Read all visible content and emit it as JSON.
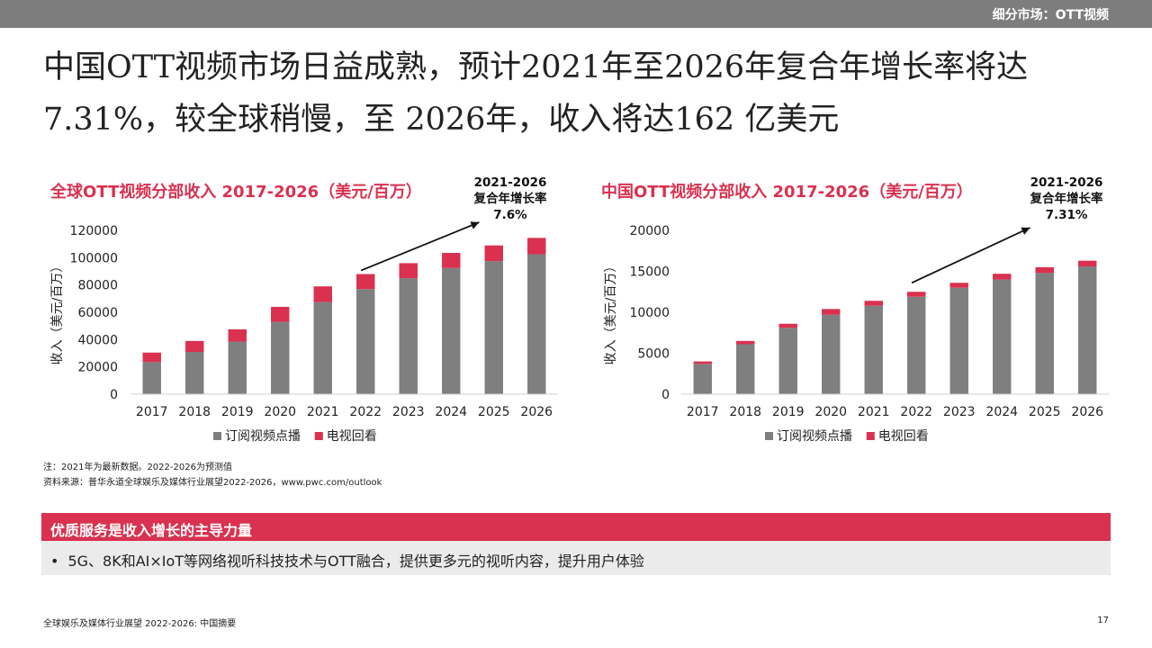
{
  "header": {
    "section_label": "细分市场：OTT视频"
  },
  "page": {
    "title": "中国OTT视频市场日益成熟，预计2021年至2026年复合年增长率将达7.31%，较全球稍慢，至 2026年，收入将达162 亿美元"
  },
  "chart_data": [
    {
      "type": "bar",
      "stacked": true,
      "title": "全球OTT视频分部收入 2017-2026（美元/百万）",
      "ylabel": "收入（美元/百万）",
      "xlabel": "",
      "ylim": [
        0,
        120000
      ],
      "yticks": [
        0,
        20000,
        40000,
        60000,
        80000,
        100000,
        120000
      ],
      "grid": false,
      "legend": "bottom",
      "categories": [
        "2017",
        "2018",
        "2019",
        "2020",
        "2021",
        "2022",
        "2023",
        "2024",
        "2025",
        "2026"
      ],
      "series": [
        {
          "name": "订阅视频点播",
          "color": "#7f7f7f",
          "values": [
            23500,
            31000,
            38500,
            53000,
            67500,
            77000,
            85000,
            92500,
            97500,
            102500
          ]
        },
        {
          "name": "电视回看",
          "color": "#d9314f",
          "values": [
            7000,
            8000,
            9000,
            11000,
            11500,
            11000,
            11000,
            11000,
            11500,
            12000
          ]
        }
      ],
      "annotation": {
        "lines": [
          "2021-2026",
          "复合年增长率",
          "7.6%"
        ],
        "from": "2022",
        "to": "2025"
      }
    },
    {
      "type": "bar",
      "stacked": true,
      "title": "中国OTT视频分部收入 2017-2026（美元/百万）",
      "ylabel": "收入（美元/百万）",
      "xlabel": "",
      "ylim": [
        0,
        20000
      ],
      "yticks": [
        0,
        5000,
        10000,
        15000,
        20000
      ],
      "grid": false,
      "legend": "bottom",
      "categories": [
        "2017",
        "2018",
        "2019",
        "2020",
        "2021",
        "2022",
        "2023",
        "2024",
        "2025",
        "2026"
      ],
      "series": [
        {
          "name": "订阅视频点播",
          "color": "#7f7f7f",
          "values": [
            3700,
            6100,
            8100,
            9700,
            10800,
            11900,
            13000,
            14000,
            14800,
            15600
          ]
        },
        {
          "name": "电视回看",
          "color": "#d9314f",
          "values": [
            300,
            400,
            500,
            700,
            600,
            600,
            600,
            700,
            700,
            700
          ]
        }
      ],
      "annotation": {
        "lines": [
          "2021-2026",
          "复合年增长率",
          "7.31%"
        ],
        "from": "2022",
        "to": "2025"
      }
    }
  ],
  "notes": {
    "note": "注：2021年为最新数据。2022-2026为预测值",
    "source": "资料来源：普华永道全球娱乐及媒体行业展望2022-2026，www.pwc.com/outlook"
  },
  "highlight": {
    "title": "优质服务是收入增长的主导力量",
    "bullet_marker": "•",
    "bullet": "5G、8K和AI×IoT等网络视听科技技术与OTT融合，提供更多元的视听内容，提升用户体验"
  },
  "footer": {
    "left": "全球娱乐及媒体行业展望 2022-2026: 中国摘要",
    "page_number": "17"
  }
}
